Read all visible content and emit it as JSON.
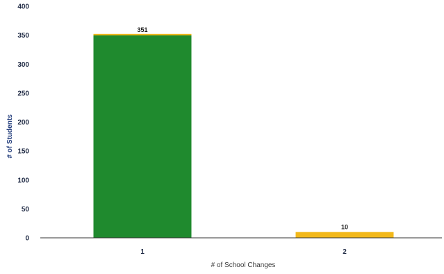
{
  "chart_data": {
    "type": "bar",
    "categories": [
      "1",
      "2"
    ],
    "series": [
      {
        "values": [
          351,
          10
        ]
      }
    ],
    "data_labels": [
      "351",
      "10"
    ],
    "bar_colors": [
      "#1f8a2e",
      "#f2b81a"
    ],
    "xlabel": "# of School Changes",
    "ylabel": "# of Students",
    "ylim": [
      0,
      400
    ],
    "yticks": [
      0,
      50,
      100,
      150,
      200,
      250,
      300,
      350,
      400
    ],
    "grid": false,
    "legend": "none"
  }
}
